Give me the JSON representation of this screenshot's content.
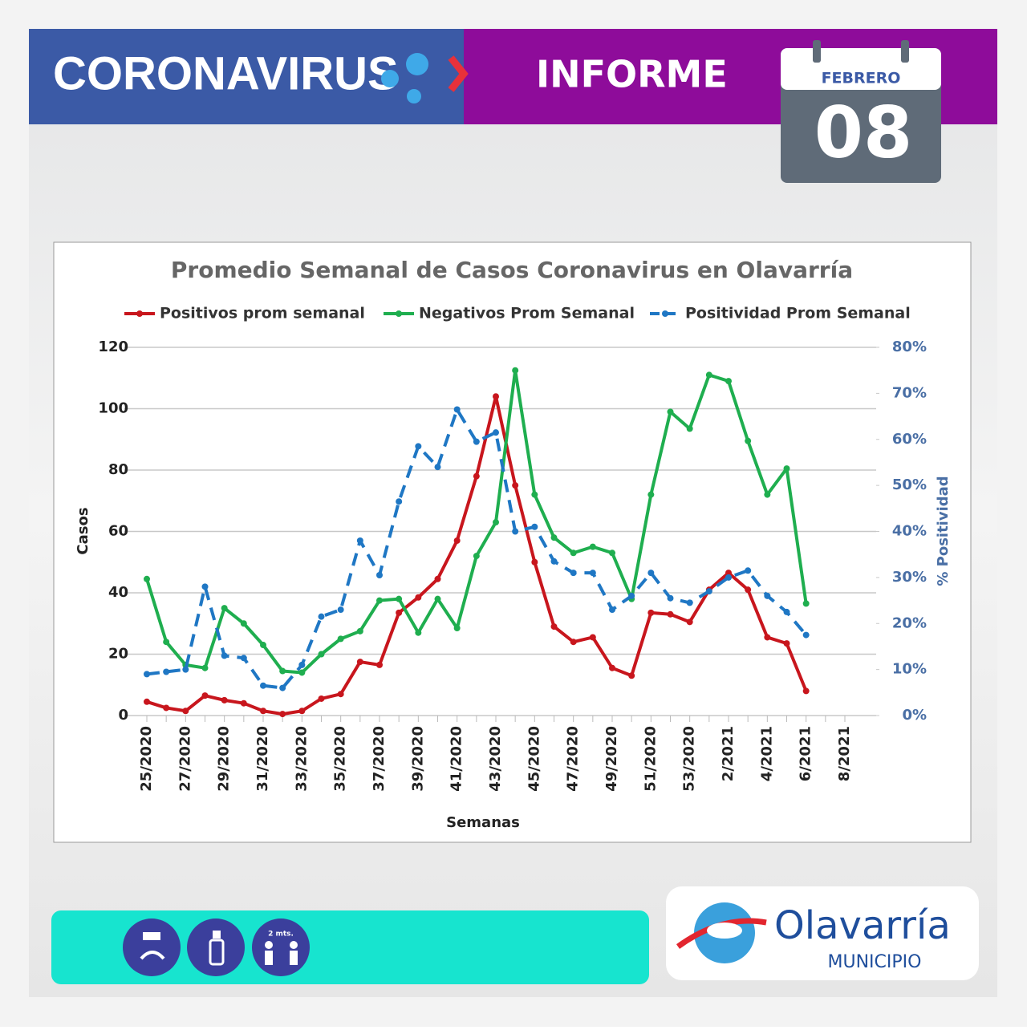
{
  "header": {
    "title": "CORONAVIRUS",
    "subtitle": "INFORME",
    "month": "FEBRERO",
    "day": "08"
  },
  "chart_data": {
    "type": "line",
    "title": "Promedio Semanal de Casos Coronavirus en Olavarría",
    "x_label": "Semanas",
    "y_label": "Casos",
    "y2_label": "% Positividad",
    "categories": [
      "25/2020",
      null,
      "27/2020",
      null,
      "29/2020",
      null,
      "31/2020",
      null,
      "33/2020",
      null,
      "35/2020",
      null,
      "37/2020",
      null,
      "39/2020",
      null,
      "41/2020",
      null,
      "43/2020",
      null,
      "45/2020",
      null,
      "47/2020",
      null,
      "49/2020",
      null,
      "51/2020",
      null,
      "53/2020",
      null,
      "2/2021",
      null,
      "4/2021",
      null,
      "6/2021",
      null,
      "8/2021"
    ],
    "series": [
      {
        "name": "Positivos prom semanal",
        "color": "#c8161d",
        "values": [
          4.5,
          2.5,
          1.5,
          6.5,
          5,
          4,
          1.5,
          0.5,
          1.5,
          5.5,
          7,
          17.5,
          16.5,
          33.5,
          38.5,
          44.5,
          57,
          78,
          104,
          75,
          50,
          29,
          24,
          25.5,
          15.5,
          13,
          33.5,
          33,
          30.5,
          41,
          46.5,
          41,
          25.5,
          23.5,
          8,
          null,
          null
        ]
      },
      {
        "name": "Negativos Prom Semanal",
        "color": "#1fae4f",
        "values": [
          44.5,
          24,
          16.5,
          15.5,
          35,
          30,
          23,
          14.5,
          14,
          20,
          25,
          27.5,
          37.5,
          38,
          27,
          38,
          28.5,
          52,
          63,
          112.5,
          72,
          58,
          53,
          55,
          53,
          38,
          72,
          99,
          93.5,
          111,
          109,
          89.5,
          72,
          80.5,
          36.5,
          null,
          null
        ]
      },
      {
        "name": "Positividad Prom Semanal",
        "color": "#1f77c4",
        "axis": "y2",
        "dashed": true,
        "values": [
          9,
          9.5,
          10,
          28,
          13,
          12.5,
          6.5,
          6,
          11,
          21.5,
          23,
          38,
          30.5,
          46.5,
          58.5,
          54,
          66.5,
          59.5,
          61.5,
          40,
          41,
          33.5,
          31,
          31,
          23,
          26,
          31,
          25.5,
          24.5,
          27,
          30,
          31.5,
          26,
          22.5,
          17.5,
          null,
          null
        ]
      }
    ],
    "ylim": [
      0,
      120
    ],
    "yticks": [
      0,
      20,
      40,
      60,
      80,
      100,
      120
    ],
    "y2lim": [
      0,
      80
    ],
    "y2ticks": [
      {
        "value": 0,
        "label": "0%"
      },
      {
        "value": 10,
        "label": "10%"
      },
      {
        "value": 20,
        "label": "20%"
      },
      {
        "value": 30,
        "label": "30%"
      },
      {
        "value": 40,
        "label": "40%"
      },
      {
        "value": 50,
        "label": "50%"
      },
      {
        "value": 60,
        "label": "60%"
      },
      {
        "value": 70,
        "label": "70%"
      },
      {
        "value": 80,
        "label": "80%"
      }
    ],
    "grid": true,
    "legend": "top"
  },
  "footer": {
    "distance": "2 mts.",
    "logo": "Olavarría",
    "logo_sub": "MUNICIPIO"
  }
}
